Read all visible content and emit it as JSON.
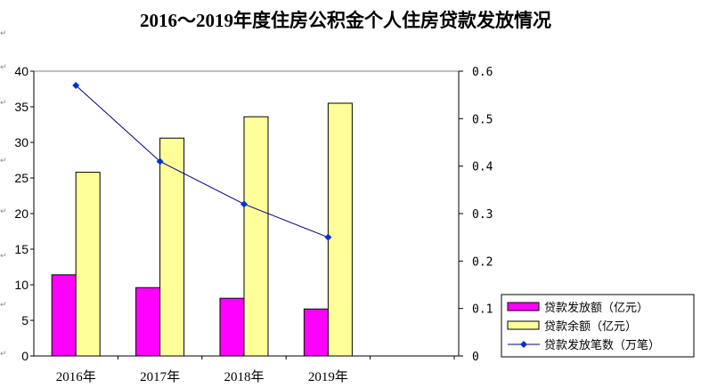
{
  "paragraph_mark": "↵",
  "chart_data": {
    "type": "bar",
    "title": "2016～2019年度住房公积金个人住房贷款发放情况",
    "categories": [
      "2016年",
      "2017年",
      "2018年",
      "2019年"
    ],
    "grid": false,
    "legend_position": "bottom-right",
    "y_left": {
      "range": [
        0,
        40
      ],
      "ticks": [
        "0",
        "5",
        "10",
        "15",
        "20",
        "25",
        "30",
        "35",
        "40"
      ]
    },
    "y_right": {
      "range": [
        0,
        0.6
      ],
      "ticks": [
        "0",
        "0.1",
        "0.2",
        "0.3",
        "0.4",
        "0.5",
        "0.6"
      ]
    },
    "series": [
      {
        "name": "贷款发放额（亿元）",
        "type": "bar",
        "axis": "left",
        "color": "#FF00FF",
        "values": [
          11.4,
          9.6,
          8.1,
          6.6
        ]
      },
      {
        "name": "贷款余额（亿元）",
        "type": "bar",
        "axis": "left",
        "color": "#FFFF99",
        "values": [
          25.8,
          30.6,
          33.6,
          35.5
        ]
      },
      {
        "name": "贷款发放笔数（万笔）",
        "type": "line",
        "axis": "right",
        "color": "#000080",
        "marker_color": "#0033CC",
        "values": [
          0.57,
          0.41,
          0.32,
          0.25
        ]
      }
    ]
  }
}
